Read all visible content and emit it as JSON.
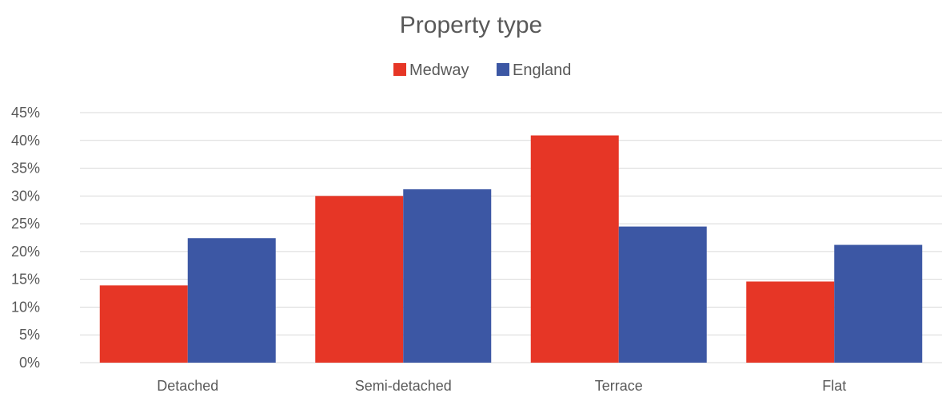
{
  "chart_data": {
    "type": "bar",
    "title": "Property type",
    "categories": [
      "Detached",
      "Semi-detached",
      "Terrace",
      "Flat"
    ],
    "series": [
      {
        "name": "Medway",
        "values": [
          13.9,
          30.0,
          40.9,
          14.6
        ],
        "color": "#e63626"
      },
      {
        "name": "England",
        "values": [
          22.4,
          31.2,
          24.5,
          21.2
        ],
        "color": "#3c57a4"
      }
    ],
    "y_ticks": [
      "0%",
      "5%",
      "10%",
      "15%",
      "20%",
      "25%",
      "30%",
      "35%",
      "40%",
      "45%"
    ],
    "ylim": [
      0,
      45
    ],
    "y_unit": "%",
    "grid": true,
    "legend_position": "top"
  }
}
